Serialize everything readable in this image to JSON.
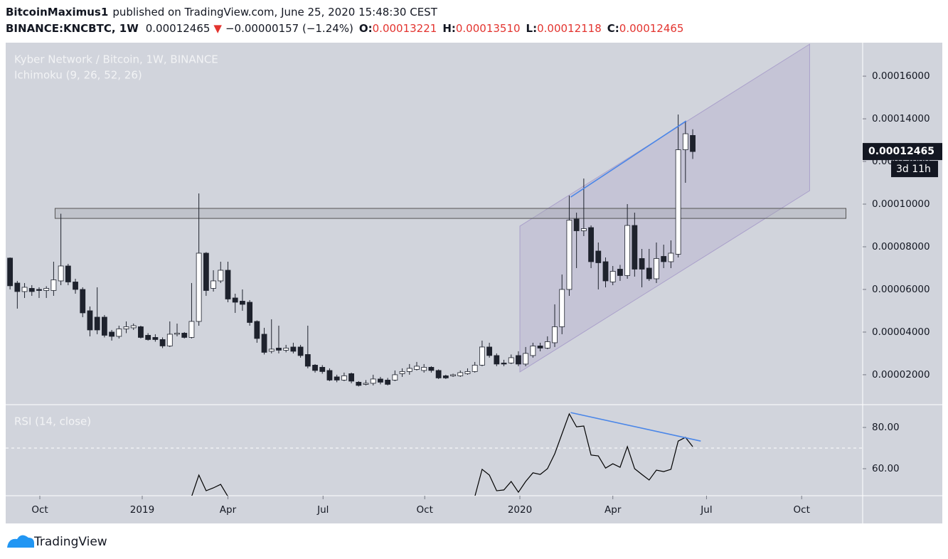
{
  "header": {
    "author": "BitcoinMaximus1",
    "published": "published on TradingView.com, June 25, 2020 15:48:30 CEST",
    "symbol": "BINANCE:KNCBTC, 1W",
    "last": "0.00012465",
    "arrow": "▼",
    "change": "−0.00000157 (−1.24%)",
    "ohlc": [
      {
        "label": "O:",
        "value": "0.00013221"
      },
      {
        "label": "H:",
        "value": "0.00013510"
      },
      {
        "label": "L:",
        "value": "0.00012118"
      },
      {
        "label": "C:",
        "value": "0.00012465"
      }
    ]
  },
  "price_tag": {
    "countdown": "3d 11h"
  },
  "footer": {
    "brand": "TradingView"
  },
  "chart_data": [
    {
      "type": "candlestick",
      "title": "Kyber Network / Bitcoin, 1W, BINANCE",
      "subtitle": "Ichimoku (9, 26, 52, 26)",
      "up_color": "#ffffff",
      "down_color": "#1e222d",
      "wick_color": "#1e222d",
      "x": [
        0,
        1,
        2,
        3,
        4,
        5,
        6,
        7,
        8,
        9,
        10,
        11,
        12,
        13,
        14,
        15,
        16,
        17,
        18,
        19,
        20,
        21,
        22,
        23,
        24,
        25,
        26,
        27,
        28,
        29,
        30,
        31,
        32,
        33,
        34,
        35,
        36,
        37,
        38,
        39,
        40,
        41,
        42,
        43,
        44,
        45,
        46,
        47,
        48,
        49,
        50,
        51,
        52,
        53,
        54,
        55,
        56,
        57,
        58,
        59,
        60,
        61,
        62,
        63,
        64,
        65,
        66,
        67,
        68,
        69,
        70,
        71,
        72,
        73,
        74,
        75,
        76,
        77,
        78,
        79,
        80,
        81,
        82,
        83,
        84,
        85,
        86,
        87,
        88,
        89,
        90,
        91,
        92,
        93,
        94
      ],
      "open": [
        7.47e-05,
        6.3e-05,
        5.9e-05,
        6.05e-05,
        6e-05,
        5.95e-05,
        5.95e-05,
        6.4e-05,
        7.1e-05,
        6.35e-05,
        6e-05,
        5e-05,
        4.7e-05,
        4.7e-05,
        4e-05,
        3.8e-05,
        4.15e-05,
        4.2e-05,
        4.25e-05,
        3.85e-05,
        3.75e-05,
        3.65e-05,
        3.35e-05,
        3.9e-05,
        3.95e-05,
        3.75e-05,
        4.5e-05,
        7.7e-05,
        6.05e-05,
        6.4e-05,
        6.9e-05,
        5.6e-05,
        5.45e-05,
        5.4e-05,
        4.5e-05,
        3.9e-05,
        3.1e-05,
        3.25e-05,
        3.15e-05,
        3.3e-05,
        3.3e-05,
        2.95e-05,
        2.45e-05,
        2.35e-05,
        2.2e-05,
        1.9e-05,
        1.75e-05,
        2.05e-05,
        1.65e-05,
        1.55e-05,
        1.6e-05,
        1.8e-05,
        1.75e-05,
        1.75e-05,
        2.05e-05,
        2.15e-05,
        2.25e-05,
        2.2e-05,
        2.35e-05,
        2.2e-05,
        1.95e-05,
        1.95e-05,
        1.95e-05,
        2.05e-05,
        2.15e-05,
        2.45e-05,
        3.3e-05,
        2.9e-05,
        2.55e-05,
        2.55e-05,
        2.9e-05,
        2.5e-05,
        2.9e-05,
        3.35e-05,
        3.25e-05,
        3.5e-05,
        4.25e-05,
        6e-05,
        9.3e-05,
        8.75e-05,
        8.9e-05,
        7.8e-05,
        7.3e-05,
        6.35e-05,
        6.95e-05,
        6.65e-05,
        9e-05,
        7.45e-05,
        7e-05,
        6.5e-05,
        7.55e-05,
        7.3e-05,
        7.65e-05,
        0.0001255,
        0.00013221
      ],
      "high": [
        7.5e-05,
        6.4e-05,
        6.3e-05,
        6.2e-05,
        6.1e-05,
        6.15e-05,
        7.3e-05,
        9.55e-05,
        7.2e-05,
        6.5e-05,
        6.1e-05,
        5.2e-05,
        6.1e-05,
        4.8e-05,
        4.1e-05,
        4.3e-05,
        4.5e-05,
        4.4e-05,
        4.3e-05,
        3.95e-05,
        3.9e-05,
        3.75e-05,
        4.5e-05,
        4.4e-05,
        4e-05,
        6.3e-05,
        0.000105,
        7.75e-05,
        6.9e-05,
        7.3e-05,
        7.3e-05,
        5.8e-05,
        6e-05,
        5.5e-05,
        4.55e-05,
        4.2e-05,
        4.6e-05,
        4.3e-05,
        3.4e-05,
        3.5e-05,
        3.4e-05,
        4.3e-05,
        2.5e-05,
        2.45e-05,
        2.3e-05,
        2e-05,
        2.1e-05,
        2.1e-05,
        1.7e-05,
        1.75e-05,
        2e-05,
        1.9e-05,
        1.85e-05,
        2.2e-05,
        2.3e-05,
        2.5e-05,
        2.6e-05,
        2.5e-05,
        2.4e-05,
        2.25e-05,
        2e-05,
        2.05e-05,
        2.2e-05,
        2.3e-05,
        2.6e-05,
        3.6e-05,
        3.5e-05,
        3e-05,
        2.7e-05,
        2.95e-05,
        3.1e-05,
        3.3e-05,
        3.5e-05,
        3.5e-05,
        3.8e-05,
        5.3e-05,
        6.7e-05,
        0.000104,
        9.6e-05,
        0.000112,
        9e-05,
        8.2e-05,
        7.5e-05,
        7.1e-05,
        7.15e-05,
        0.0001,
        9.6e-05,
        7.9e-05,
        7.9e-05,
        8.2e-05,
        8.1e-05,
        8.3e-05,
        0.000142,
        0.000139,
        0.0001351
      ],
      "low": [
        6e-05,
        5.1e-05,
        5.6e-05,
        5.7e-05,
        5.6e-05,
        5.6e-05,
        5.7e-05,
        6.2e-05,
        6.2e-05,
        5.8e-05,
        4.7e-05,
        3.8e-05,
        3.9e-05,
        3.75e-05,
        3.6e-05,
        3.7e-05,
        3.95e-05,
        4.1e-05,
        3.7e-05,
        3.6e-05,
        3.55e-05,
        3.25e-05,
        3.3e-05,
        3.8e-05,
        3.7e-05,
        3.7e-05,
        4.3e-05,
        5.7e-05,
        5.9e-05,
        6.3e-05,
        5.4e-05,
        4.9e-05,
        5e-05,
        4.3e-05,
        3.5e-05,
        2.95e-05,
        3e-05,
        3e-05,
        3.05e-05,
        3e-05,
        2.8e-05,
        2.3e-05,
        2.1e-05,
        2.05e-05,
        1.7e-05,
        1.65e-05,
        1.7e-05,
        1.6e-05,
        1.45e-05,
        1.5e-05,
        1.5e-05,
        1.55e-05,
        1.5e-05,
        1.7e-05,
        1.9e-05,
        2e-05,
        2.2e-05,
        2.1e-05,
        2.1e-05,
        1.8e-05,
        1.8e-05,
        1.9e-05,
        1.9e-05,
        2e-05,
        2.1e-05,
        2.4e-05,
        2.8e-05,
        2.4e-05,
        2.4e-05,
        2.5e-05,
        2.4e-05,
        2.4e-05,
        2.8e-05,
        3.1e-05,
        3.2e-05,
        3.3e-05,
        3.9e-05,
        5.7e-05,
        7e-05,
        8.5e-05,
        7e-05,
        6e-05,
        6.1e-05,
        6.2e-05,
        6.4e-05,
        6.5e-05,
        6.6e-05,
        6.1e-05,
        6.4e-05,
        6.3e-05,
        7e-05,
        7e-05,
        7.5e-05,
        0.00011,
        0.00012118
      ],
      "close": [
        6.17e-05,
        5.9e-05,
        6.1e-05,
        5.9e-05,
        5.95e-05,
        6.05e-05,
        6.45e-05,
        7.1e-05,
        6.35e-05,
        6e-05,
        4.9e-05,
        4.1e-05,
        4.1e-05,
        3.85e-05,
        3.8e-05,
        4.15e-05,
        4.25e-05,
        4.3e-05,
        3.75e-05,
        3.65e-05,
        3.65e-05,
        3.35e-05,
        3.9e-05,
        3.95e-05,
        3.75e-05,
        4.5e-05,
        7.7e-05,
        5.95e-05,
        6.4e-05,
        6.9e-05,
        5.55e-05,
        5.4e-05,
        5.3e-05,
        4.45e-05,
        3.7e-05,
        3.05e-05,
        3.2e-05,
        3.15e-05,
        3.25e-05,
        3.1e-05,
        2.9e-05,
        2.4e-05,
        2.2e-05,
        2.15e-05,
        1.75e-05,
        1.75e-05,
        1.95e-05,
        1.7e-05,
        1.5e-05,
        1.6e-05,
        1.8e-05,
        1.65e-05,
        1.55e-05,
        2e-05,
        2.15e-05,
        2.3e-05,
        2.4e-05,
        2.35e-05,
        2.2e-05,
        1.85e-05,
        1.85e-05,
        2e-05,
        2.1e-05,
        2.15e-05,
        2.45e-05,
        3.3e-05,
        2.9e-05,
        2.5e-05,
        2.5e-05,
        2.8e-05,
        2.5e-05,
        3e-05,
        3.35e-05,
        3.25e-05,
        3.55e-05,
        4.25e-05,
        6e-05,
        9.25e-05,
        8.75e-05,
        8.85e-05,
        7.3e-05,
        7.25e-05,
        6.4e-05,
        6.85e-05,
        6.65e-05,
        9e-05,
        6.95e-05,
        6.95e-05,
        6.5e-05,
        7.45e-05,
        7.3e-05,
        7.7e-05,
        0.0001255,
        0.000133,
        0.00012465
      ],
      "xlim": [
        -0.6,
        117.4
      ],
      "xticks": [
        {
          "value": 4.1,
          "label": "Oct"
        },
        {
          "value": 18.2,
          "label": "2019"
        },
        {
          "value": 30.0,
          "label": "Apr"
        },
        {
          "value": 43.1,
          "label": "Jul"
        },
        {
          "value": 57.1,
          "label": "Oct"
        },
        {
          "value": 70.2,
          "label": "2020"
        },
        {
          "value": 83.0,
          "label": "Apr"
        },
        {
          "value": 95.9,
          "label": "Jul"
        },
        {
          "value": 109.0,
          "label": "Oct"
        }
      ],
      "ylim": [
        6.3e-06,
        0.0001757
      ],
      "yticks": [
        {
          "value": 2e-05,
          "label": "0.00002000"
        },
        {
          "value": 4e-05,
          "label": "0.00004000"
        },
        {
          "value": 6e-05,
          "label": "0.00006000"
        },
        {
          "value": 8e-05,
          "label": "0.00008000"
        },
        {
          "value": 0.0001,
          "label": "0.00010000"
        },
        {
          "value": 0.00012,
          "label": "0.00012000"
        },
        {
          "value": 0.00014,
          "label": "0.00014000"
        },
        {
          "value": 0.00016,
          "label": "0.00016000"
        }
      ],
      "channel": {
        "x": [
          70.2,
          110.1
        ],
        "upper": [
          8.97e-05,
          0.000175
        ],
        "lower": [
          2.13e-05,
          0.0001063
        ],
        "color": "#9c8fc4"
      },
      "zone": {
        "x": [
          6.2,
          115.1
        ],
        "y": [
          9.33e-05,
          9.8e-05
        ],
        "color": "#555555"
      },
      "trendline": {
        "x": [
          77.2,
          93.1
        ],
        "y": [
          0.0001033,
          0.000139
        ],
        "color": "#4a86e8"
      }
    },
    {
      "type": "line",
      "title": "RSI (14, close)",
      "color": "#000000",
      "x": [
        0,
        1,
        2,
        3,
        4,
        5,
        6,
        7,
        8,
        9,
        10,
        11,
        12,
        13,
        14,
        15,
        16,
        17,
        18,
        19,
        20,
        21,
        22,
        23,
        24,
        25,
        26,
        27,
        28,
        29,
        30,
        31,
        32,
        33,
        34,
        35,
        36,
        37,
        38,
        39,
        40,
        41,
        42,
        43,
        44,
        45,
        46,
        47,
        48,
        49,
        50,
        51,
        52,
        53,
        54,
        55,
        56,
        57,
        58,
        59,
        60,
        61,
        62,
        63,
        64,
        65,
        66,
        67,
        68,
        69,
        70,
        71,
        72,
        73,
        74,
        75,
        76,
        77,
        78,
        79,
        80,
        81,
        82,
        83,
        84,
        85,
        86,
        87,
        88,
        89,
        90,
        91,
        92,
        93,
        94
      ],
      "values": [
        null,
        null,
        null,
        null,
        null,
        null,
        null,
        null,
        null,
        null,
        null,
        null,
        null,
        null,
        null,
        null,
        null,
        null,
        null,
        null,
        null,
        null,
        null,
        null,
        null,
        46.5,
        56.9,
        49.3,
        50.7,
        52.4,
        46.5,
        null,
        null,
        null,
        null,
        null,
        null,
        null,
        null,
        null,
        null,
        null,
        null,
        null,
        null,
        null,
        null,
        null,
        null,
        null,
        null,
        null,
        null,
        null,
        null,
        null,
        null,
        null,
        null,
        null,
        null,
        null,
        null,
        null,
        46.5,
        59.7,
        56.9,
        49.3,
        49.7,
        53.8,
        48.6,
        53.8,
        58,
        57.2,
        60,
        67.2,
        76.9,
        86.6,
        80.3,
        80.7,
        66.6,
        66.2,
        60.3,
        62.4,
        60.7,
        70.7,
        60,
        57.2,
        54.5,
        59.3,
        58.6,
        59.7,
        73.4,
        75.2,
        70.7
      ],
      "xlim": [
        -0.6,
        117.4
      ],
      "ylim": [
        46.9,
        90.7
      ],
      "yticks": [
        {
          "value": 60,
          "label": "60.00"
        },
        {
          "value": 80,
          "label": "80.00"
        }
      ],
      "level": 70,
      "trendline": {
        "x": [
          77.2,
          95.1
        ],
        "y": [
          87.2,
          73.4
        ],
        "color": "#4a86e8"
      }
    }
  ]
}
